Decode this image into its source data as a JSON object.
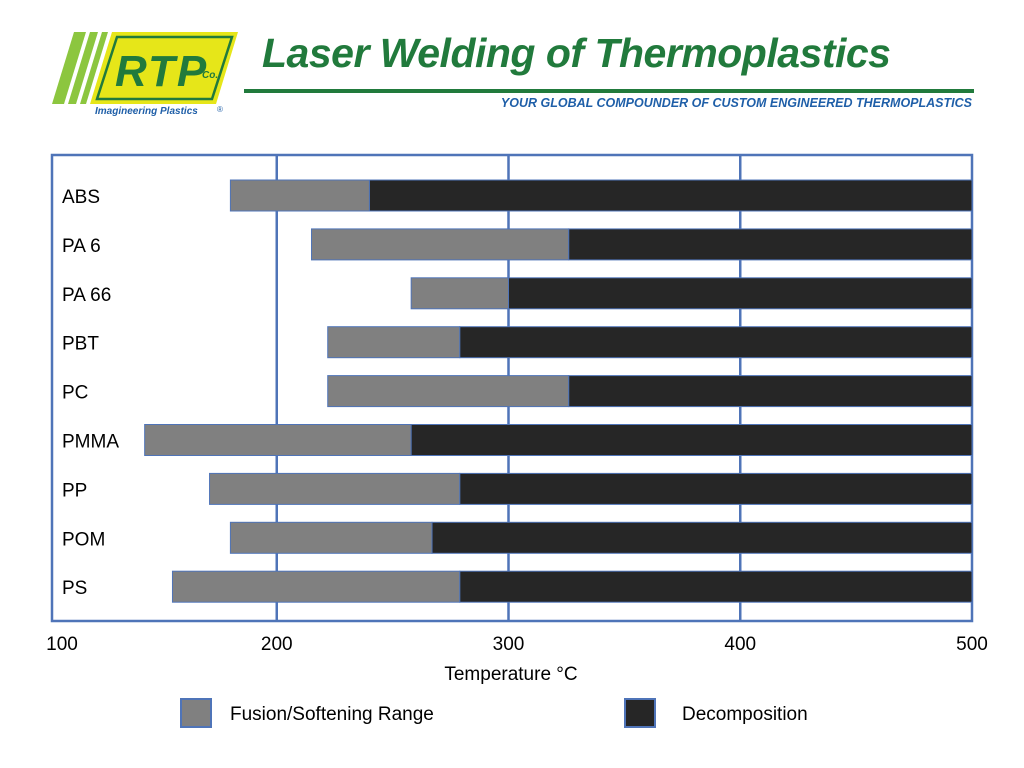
{
  "header": {
    "title": "Laser Welding of Thermoplastics",
    "tagline": "YOUR GLOBAL COMPOUNDER OF CUSTOM ENGINEERED THERMOPLASTICS",
    "logo": {
      "letters": "RTP",
      "co": "Co.",
      "slogan": "Imagineering Plastics",
      "reg": "®"
    }
  },
  "colors": {
    "fusion": "#808080",
    "decomposition": "#262626",
    "frame": "#4f74b8",
    "title": "#217a3c",
    "tagline": "#1f5fa8"
  },
  "chart_data": {
    "type": "bar",
    "orientation": "horizontal",
    "stacked": true,
    "categories": [
      "ABS",
      "PA 6",
      "PA 66",
      "PBT",
      "PC",
      "PMMA",
      "PP",
      "POM",
      "PS"
    ],
    "series": [
      {
        "name": "Fusion/Softening Range",
        "start": [
          180,
          215,
          258,
          222,
          222,
          143,
          171,
          180,
          155
        ],
        "end": [
          240,
          326,
          300,
          279,
          326,
          258,
          279,
          267,
          279
        ]
      },
      {
        "name": "Decomposition",
        "start": [
          240,
          326,
          300,
          279,
          326,
          258,
          279,
          267,
          279
        ],
        "end": [
          500,
          500,
          500,
          500,
          500,
          500,
          500,
          500,
          500
        ]
      }
    ],
    "xlabel": "Temperature °C",
    "xlim": [
      100,
      500
    ],
    "xticks": [
      "100",
      "200",
      "300",
      "400",
      "500"
    ],
    "grid": true,
    "legend_position": "bottom"
  }
}
